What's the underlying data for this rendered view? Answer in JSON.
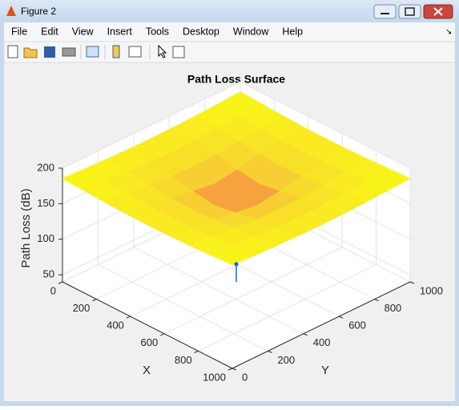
{
  "window": {
    "title": "Figure 2",
    "menu": [
      "File",
      "Edit",
      "View",
      "Insert",
      "Tools",
      "Desktop",
      "Window",
      "Help"
    ]
  },
  "chart_data": {
    "type": "surface",
    "title": "Path Loss Surface",
    "xlabel": "X",
    "ylabel": "Y",
    "zlabel": "Path Loss (dB)",
    "x": [
      0,
      125,
      250,
      375,
      500,
      625,
      750,
      875,
      1000
    ],
    "y": [
      0,
      125,
      250,
      375,
      500,
      625,
      750,
      875,
      1000
    ],
    "z": [
      [
        185.5,
        183.9,
        182.4,
        181.4,
        181.0,
        181.4,
        182.4,
        183.9,
        185.5
      ],
      [
        183.9,
        181.7,
        179.6,
        177.9,
        177.2,
        177.9,
        179.6,
        181.7,
        183.9
      ],
      [
        182.4,
        179.6,
        176.5,
        173.4,
        171.9,
        173.4,
        176.5,
        179.6,
        182.4
      ],
      [
        181.4,
        177.9,
        173.4,
        167.4,
        162.9,
        167.4,
        173.4,
        177.9,
        181.4
      ],
      [
        181.0,
        177.2,
        171.9,
        162.9,
        130.0,
        162.9,
        171.9,
        177.2,
        181.0
      ],
      [
        181.4,
        177.9,
        173.4,
        167.4,
        162.9,
        167.4,
        173.4,
        177.9,
        181.4
      ],
      [
        182.4,
        179.6,
        176.5,
        173.4,
        171.9,
        173.4,
        176.5,
        179.6,
        182.4
      ],
      [
        183.9,
        181.7,
        179.6,
        177.9,
        177.2,
        177.9,
        179.6,
        181.7,
        183.9
      ],
      [
        185.5,
        183.9,
        182.4,
        181.4,
        181.0,
        181.4,
        182.4,
        183.9,
        185.5
      ]
    ],
    "xlim": [
      0,
      1000
    ],
    "ylim": [
      0,
      1000
    ],
    "zlim": [
      40,
      200
    ],
    "xticks": [
      0,
      200,
      400,
      600,
      800,
      1000
    ],
    "yticks": [
      0,
      200,
      400,
      600,
      800,
      1000
    ],
    "zticks": [
      50,
      100,
      150,
      200
    ],
    "grid": true,
    "marker": {
      "x": 500,
      "y": 500,
      "z": 65,
      "color": "#1f5fd6"
    }
  }
}
